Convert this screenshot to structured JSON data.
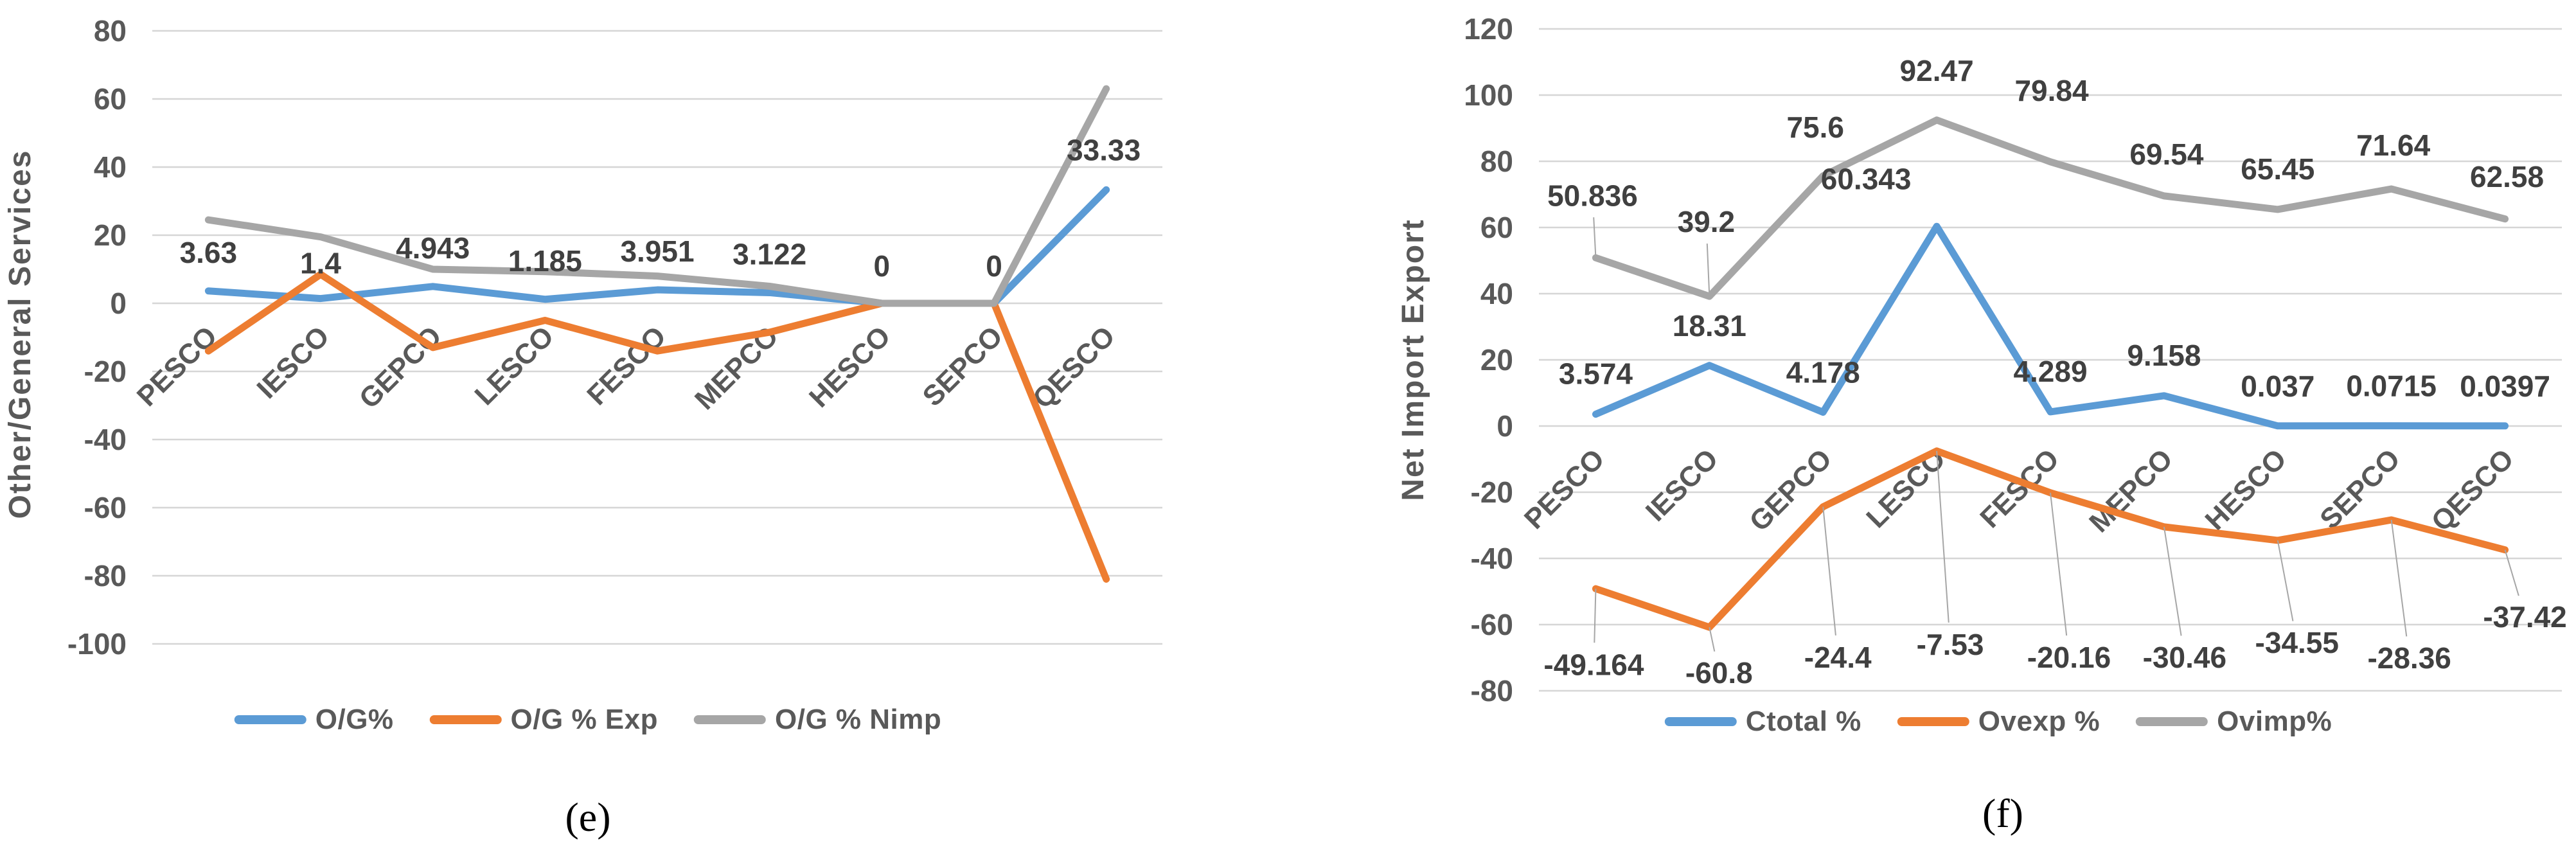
{
  "figure": {
    "background": "#ffffff",
    "captions": {
      "e": "(e)",
      "f": "(f)"
    }
  },
  "colors": {
    "series_blue": "#5B9BD5",
    "series_orange": "#ED7D31",
    "series_gray": "#A6A6A6",
    "gridline": "#D6D6D6",
    "tick_text": "#595959",
    "category_text": "#595959",
    "axis_title_text": "#595959",
    "data_label_text": "#404040",
    "leader_line": "#A6A6A6",
    "legend_text": "#595959"
  },
  "chart_data": [
    {
      "type": "line",
      "caption": "(e)",
      "title": "",
      "xlabel": "",
      "ylabel": "Other/General Services",
      "ylim": [
        -100,
        80
      ],
      "ytick_step": 20,
      "grid": true,
      "legend_position": "bottom",
      "categories": [
        "PESCO",
        "IESCO",
        "GEPCO",
        "LESCO",
        "FESCO",
        "MEPCO",
        "HESCO",
        "SEPCO",
        "QESCO"
      ],
      "series": [
        {
          "name": "O/G%",
          "color_key": "series_blue",
          "values": [
            3.63,
            1.4,
            4.943,
            1.185,
            3.951,
            3.122,
            0,
            0,
            33.33
          ],
          "data_labels": [
            "3.63",
            "1.4",
            "4.943",
            "1.185",
            "3.951",
            "3.122",
            "0",
            "0",
            "33.33"
          ],
          "label_offsets": [
            [
              0,
              -60,
              0
            ],
            [
              0,
              -55,
              0
            ],
            [
              0,
              -60,
              0
            ],
            [
              0,
              -60,
              0
            ],
            [
              0,
              -60,
              0
            ],
            [
              0,
              -60,
              0
            ],
            [
              0,
              -58,
              0
            ],
            [
              0,
              -58,
              0
            ],
            [
              -4,
              -62,
              0
            ]
          ]
        },
        {
          "name": "O/G % Exp",
          "color_key": "series_orange",
          "values": [
            -14,
            8.5,
            -13,
            -5,
            -14,
            -8.5,
            0,
            0,
            -81
          ]
        },
        {
          "name": "O/G % Nimp",
          "color_key": "series_gray",
          "values": [
            24.5,
            19.5,
            10,
            9.3,
            8,
            5,
            0,
            0,
            63
          ]
        }
      ]
    },
    {
      "type": "line",
      "caption": "(f)",
      "title": "",
      "xlabel": "",
      "ylabel": "Net Import Export",
      "ylim": [
        -80,
        120
      ],
      "ytick_step": 20,
      "grid": true,
      "legend_position": "bottom",
      "categories": [
        "PESCO",
        "IESCO",
        "GEPCO",
        "LESCO",
        "FESCO",
        "MEPCO",
        "HESCO",
        "SEPCO",
        "QESCO"
      ],
      "series": [
        {
          "name": "Ctotal %",
          "color_key": "series_blue",
          "values": [
            3.574,
            18.31,
            4.178,
            60.343,
            4.289,
            9.158,
            0.037,
            0.0715,
            0.0397
          ],
          "data_labels": [
            "3.574",
            "18.31",
            "4.178",
            "60.343",
            "4.289",
            "9.158",
            "0.037",
            "0.0715",
            "0.0397"
          ],
          "label_offsets": [
            [
              0,
              -63,
              0
            ],
            [
              0,
              -62,
              0
            ],
            [
              0,
              -62,
              0
            ],
            [
              -110,
              -74,
              0
            ],
            [
              0,
              -63,
              0
            ],
            [
              0,
              -63,
              0
            ],
            [
              0,
              -62,
              0
            ],
            [
              0,
              -62,
              0
            ],
            [
              0,
              -62,
              0
            ]
          ]
        },
        {
          "name": "Ovexp %",
          "color_key": "series_orange",
          "values": [
            -49.164,
            -60.8,
            -24.4,
            -7.53,
            -20.16,
            -30.46,
            -34.55,
            -28.36,
            -37.42
          ],
          "data_labels": [
            "-49.164",
            "-60.8",
            "-24.4",
            "-7.53",
            "-20.16",
            "-30.46",
            "-34.55",
            "-28.36",
            "-37.42"
          ],
          "label_offsets": [
            [
              -3,
              118,
              1
            ],
            [
              15,
              71,
              1
            ],
            [
              23,
              234,
              1
            ],
            [
              21,
              301,
              1
            ],
            [
              29,
              256,
              1
            ],
            [
              32,
              203,
              1
            ],
            [
              30,
              159,
              1
            ],
            [
              28,
              215,
              1
            ],
            [
              31,
              104,
              1
            ]
          ]
        },
        {
          "name": "Ovimp%",
          "color_key": "series_gray",
          "values": [
            50.836,
            39.2,
            75.6,
            92.47,
            79.84,
            69.54,
            65.45,
            71.64,
            62.58
          ],
          "data_labels": [
            "50.836",
            "39.2",
            "75.6",
            "92.47",
            "79.84",
            "69.54",
            "65.45",
            "71.64",
            "62.58"
          ],
          "label_offsets": [
            [
              -5,
              -97,
              1
            ],
            [
              -5,
              -116,
              1
            ],
            [
              -12,
              -76,
              0
            ],
            [
              0,
              -77,
              0
            ],
            [
              2,
              -111,
              0
            ],
            [
              4,
              -65,
              0
            ],
            [
              0,
              -63,
              0
            ],
            [
              3,
              -68,
              0
            ],
            [
              3,
              -66,
              0
            ]
          ]
        }
      ]
    }
  ]
}
